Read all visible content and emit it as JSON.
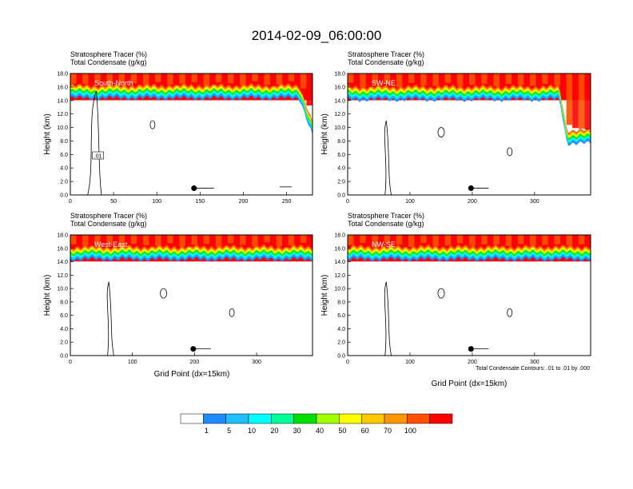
{
  "page_title": "2014-02-09_06:00:00",
  "panel_header": {
    "line1": "Stratosphere Tracer   (%)",
    "line2": "Total Condensate   (g/kg)"
  },
  "y_axis_label": "Height (km)",
  "x_axis_label": "Grid Point (dx=15km)",
  "contour_note": "Total Condensate Contours: .01 to .01 by .000",
  "colors": {
    "red": "#ff0000",
    "orange_red": "#ff5000",
    "orange": "#ff9600",
    "amber": "#ffc800",
    "yellow": "#ffff00",
    "yellow_green": "#a0ff00",
    "green": "#00e100",
    "sea_green": "#00ff96",
    "cyan": "#00ffff",
    "sky_blue": "#1ebeff",
    "blue": "#1e8cff",
    "white": "#ffffff"
  },
  "chart_data": [
    {
      "type": "heatmap",
      "panel_label": "South-North",
      "xlim": [
        0,
        280
      ],
      "xticks": [
        "0",
        "50",
        "100",
        "150",
        "200",
        "250"
      ],
      "ylim": [
        0,
        18
      ],
      "yticks": [
        "0.0",
        "2.0",
        "4.0",
        "6.0",
        "8.0",
        "10.0",
        "12.0",
        "14.0",
        "16.0",
        "18.0"
      ],
      "tropopause_height_km": 15.5,
      "contour_label": ".01",
      "marker_x": 143,
      "marker_y_km": 1.0
    },
    {
      "type": "heatmap",
      "panel_label": "SW-NE",
      "xlim": [
        0,
        390
      ],
      "xticks": [
        "0",
        "100",
        "200",
        "300"
      ],
      "ylim": [
        0,
        18
      ],
      "yticks": [
        "0.0",
        "2.0",
        "4.0",
        "6.0",
        "8.0",
        "10.0",
        "12.0",
        "14.0",
        "16.0",
        "18.0"
      ],
      "tropopause_height_km": 15.3,
      "marker_x": 198,
      "marker_y_km": 1.0
    },
    {
      "type": "heatmap",
      "panel_label": "West-East",
      "xlim": [
        0,
        390
      ],
      "xticks": [
        "0",
        "100",
        "200",
        "300"
      ],
      "ylim": [
        0,
        18
      ],
      "yticks": [
        "0.0",
        "2.0",
        "4.0",
        "6.0",
        "8.0",
        "10.0",
        "12.0",
        "14.0",
        "16.0",
        "18.0"
      ],
      "tropopause_height_km": 15.5,
      "marker_x": 198,
      "marker_y_km": 1.0
    },
    {
      "type": "heatmap",
      "panel_label": "NW-SE",
      "xlim": [
        0,
        390
      ],
      "xticks": [
        "0",
        "100",
        "200",
        "300"
      ],
      "ylim": [
        0,
        18
      ],
      "yticks": [
        "0.0",
        "2.0",
        "4.0",
        "6.0",
        "8.0",
        "10.0",
        "12.0",
        "14.0",
        "16.0",
        "18.0"
      ],
      "tropopause_height_km": 15.5,
      "marker_x": 198,
      "marker_y_km": 1.0
    }
  ],
  "colorbar": {
    "labels": [
      "1",
      "5",
      "10",
      "20",
      "30",
      "40",
      "50",
      "60",
      "70",
      "100"
    ],
    "colors": [
      "#ffffff",
      "#1e8cff",
      "#1ebeff",
      "#00ffff",
      "#00ff96",
      "#00e100",
      "#a0ff00",
      "#ffff00",
      "#ffc800",
      "#ff9600",
      "#ff5000",
      "#ff0000"
    ]
  }
}
